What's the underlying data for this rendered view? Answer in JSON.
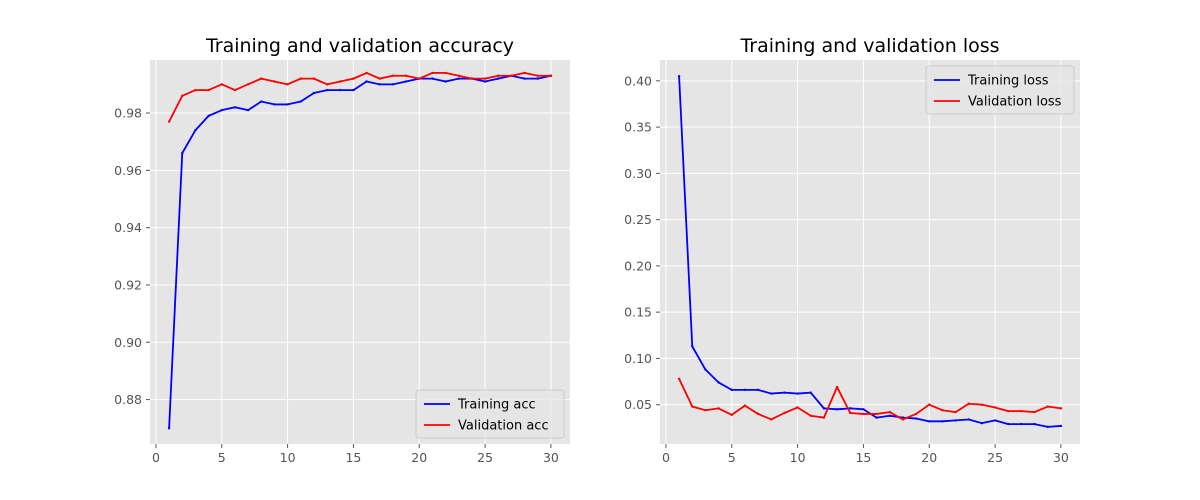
{
  "chart_data": [
    {
      "type": "line",
      "title": "Training and validation accuracy",
      "xlabel": "",
      "ylabel": "",
      "xlim": [
        -0.45,
        31.45
      ],
      "ylim": [
        0.8645,
        0.9985
      ],
      "xticks": [
        0,
        5,
        10,
        15,
        20,
        25,
        30
      ],
      "yticks": [
        0.88,
        0.9,
        0.92,
        0.94,
        0.96,
        0.98
      ],
      "grid": true,
      "legend_position": "bottom-right",
      "x": [
        1,
        2,
        3,
        4,
        5,
        6,
        7,
        8,
        9,
        10,
        11,
        12,
        13,
        14,
        15,
        16,
        17,
        18,
        19,
        20,
        21,
        22,
        23,
        24,
        25,
        26,
        27,
        28,
        29,
        30
      ],
      "series": [
        {
          "name": "Training acc",
          "color": "#0000ff",
          "values": [
            0.87,
            0.966,
            0.974,
            0.979,
            0.981,
            0.982,
            0.981,
            0.984,
            0.983,
            0.983,
            0.984,
            0.987,
            0.988,
            0.988,
            0.988,
            0.991,
            0.99,
            0.99,
            0.991,
            0.992,
            0.992,
            0.991,
            0.992,
            0.992,
            0.991,
            0.992,
            0.993,
            0.992,
            0.992,
            0.993
          ]
        },
        {
          "name": "Validation acc",
          "color": "#ff0000",
          "values": [
            0.977,
            0.986,
            0.988,
            0.988,
            0.99,
            0.988,
            0.99,
            0.992,
            0.991,
            0.99,
            0.992,
            0.992,
            0.99,
            0.991,
            0.992,
            0.994,
            0.992,
            0.993,
            0.993,
            0.992,
            0.994,
            0.994,
            0.993,
            0.992,
            0.992,
            0.993,
            0.993,
            0.994,
            0.993,
            0.993
          ]
        }
      ]
    },
    {
      "type": "line",
      "title": "Training and validation loss",
      "xlabel": "",
      "ylabel": "",
      "xlim": [
        -0.45,
        31.45
      ],
      "ylim": [
        0.0075,
        0.4225
      ],
      "xticks": [
        0,
        5,
        10,
        15,
        20,
        25,
        30
      ],
      "yticks": [
        0.05,
        0.1,
        0.15,
        0.2,
        0.25,
        0.3,
        0.35,
        0.4
      ],
      "ytick_labels": [
        "0.05",
        "0.10",
        "0.15",
        "0.20",
        "0.25",
        "0.30",
        "0.35",
        "0.40"
      ],
      "grid": true,
      "legend_position": "top-right",
      "x": [
        1,
        2,
        3,
        4,
        5,
        6,
        7,
        8,
        9,
        10,
        11,
        12,
        13,
        14,
        15,
        16,
        17,
        18,
        19,
        20,
        21,
        22,
        23,
        24,
        25,
        26,
        27,
        28,
        29,
        30
      ],
      "series": [
        {
          "name": "Training loss",
          "color": "#0000ff",
          "values": [
            0.405,
            0.113,
            0.088,
            0.074,
            0.066,
            0.066,
            0.066,
            0.062,
            0.063,
            0.062,
            0.063,
            0.046,
            0.045,
            0.046,
            0.045,
            0.036,
            0.038,
            0.036,
            0.035,
            0.032,
            0.032,
            0.033,
            0.034,
            0.03,
            0.033,
            0.029,
            0.029,
            0.029,
            0.026,
            0.027
          ]
        },
        {
          "name": "Validation loss",
          "color": "#ff0000",
          "values": [
            0.078,
            0.048,
            0.044,
            0.046,
            0.039,
            0.049,
            0.04,
            0.034,
            0.041,
            0.047,
            0.038,
            0.036,
            0.069,
            0.041,
            0.04,
            0.04,
            0.042,
            0.034,
            0.04,
            0.05,
            0.044,
            0.042,
            0.051,
            0.05,
            0.047,
            0.043,
            0.043,
            0.042,
            0.048,
            0.046
          ]
        }
      ]
    }
  ]
}
